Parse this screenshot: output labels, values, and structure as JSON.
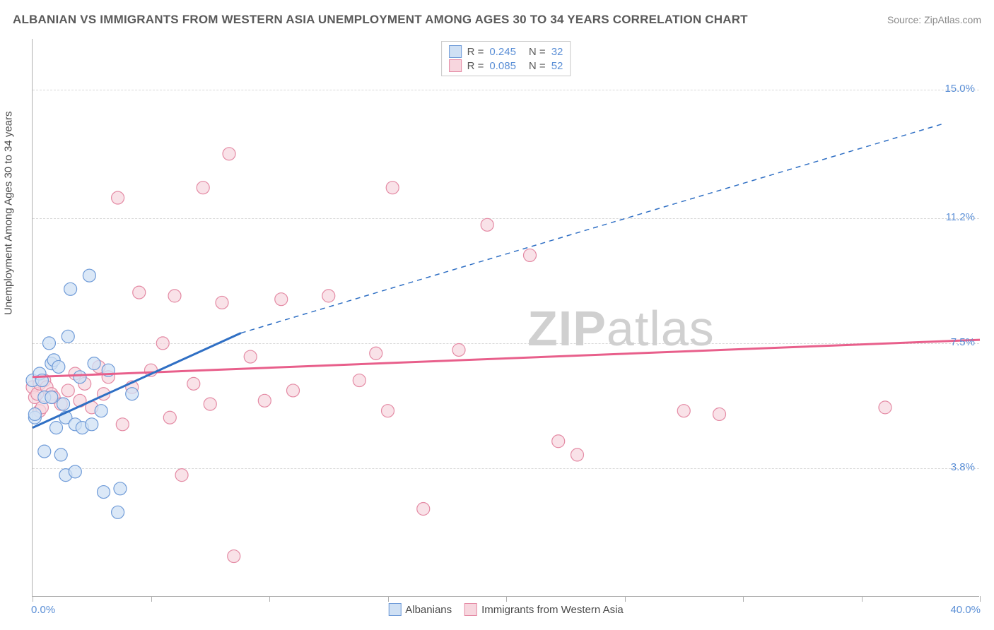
{
  "title": "ALBANIAN VS IMMIGRANTS FROM WESTERN ASIA UNEMPLOYMENT AMONG AGES 30 TO 34 YEARS CORRELATION CHART",
  "source": "Source: ZipAtlas.com",
  "ylabel": "Unemployment Among Ages 30 to 34 years",
  "watermark_a": "ZIP",
  "watermark_b": "atlas",
  "chart": {
    "type": "scatter",
    "background_color": "#ffffff",
    "grid_color": "#d8d8d8",
    "axis_color": "#b0b0b0",
    "xlim": [
      0,
      40
    ],
    "ylim": [
      0,
      16.5
    ],
    "x_ticks": [
      0,
      5,
      10,
      15,
      20,
      25,
      30,
      35,
      40
    ],
    "y_gridlines": [
      3.8,
      7.5,
      11.2,
      15.0
    ],
    "y_tick_labels": [
      "3.8%",
      "7.5%",
      "11.2%",
      "15.0%"
    ],
    "x_min_label": "0.0%",
    "x_max_label": "40.0%",
    "label_fontsize": 15,
    "label_color": "#5b8fd6",
    "marker_radius": 9,
    "marker_stroke_width": 1.2,
    "series": [
      {
        "name": "Albanians",
        "fill": "#cfe0f4",
        "stroke": "#6f9bd8",
        "fill_opacity": 0.75,
        "R": "0.245",
        "N": "32",
        "trend": {
          "color": "#2f6fc4",
          "width": 3,
          "dash_width": 1.5,
          "x1": 0,
          "y1": 5.0,
          "x_solid_end": 8.8,
          "y_solid_end": 7.8,
          "x2": 38.5,
          "y2": 14.0
        },
        "points": [
          [
            0.0,
            6.4
          ],
          [
            0.1,
            5.3
          ],
          [
            0.1,
            5.4
          ],
          [
            0.3,
            6.6
          ],
          [
            0.4,
            6.4
          ],
          [
            0.5,
            5.9
          ],
          [
            0.5,
            4.3
          ],
          [
            0.7,
            7.5
          ],
          [
            0.8,
            6.9
          ],
          [
            0.8,
            5.9
          ],
          [
            0.9,
            7.0
          ],
          [
            1.0,
            5.0
          ],
          [
            1.1,
            6.8
          ],
          [
            1.2,
            4.2
          ],
          [
            1.3,
            5.7
          ],
          [
            1.4,
            5.3
          ],
          [
            1.4,
            3.6
          ],
          [
            1.5,
            7.7
          ],
          [
            1.6,
            9.1
          ],
          [
            1.8,
            5.1
          ],
          [
            1.8,
            3.7
          ],
          [
            2.0,
            6.5
          ],
          [
            2.1,
            5.0
          ],
          [
            2.4,
            9.5
          ],
          [
            2.5,
            5.1
          ],
          [
            2.6,
            6.9
          ],
          [
            2.9,
            5.5
          ],
          [
            3.0,
            3.1
          ],
          [
            3.2,
            6.7
          ],
          [
            3.6,
            2.5
          ],
          [
            3.7,
            3.2
          ],
          [
            4.2,
            6.0
          ]
        ]
      },
      {
        "name": "Immigrants from Western Asia",
        "fill": "#f7d6de",
        "stroke": "#e48aa4",
        "fill_opacity": 0.7,
        "R": "0.085",
        "N": "52",
        "trend": {
          "color": "#e85f8b",
          "width": 3,
          "x1": 0,
          "y1": 6.5,
          "x2": 40,
          "y2": 7.6
        },
        "points": [
          [
            0.0,
            6.2
          ],
          [
            0.1,
            5.9
          ],
          [
            0.2,
            6.0
          ],
          [
            0.3,
            5.5
          ],
          [
            0.3,
            6.3
          ],
          [
            0.4,
            5.6
          ],
          [
            0.5,
            6.4
          ],
          [
            0.6,
            6.2
          ],
          [
            0.8,
            6.0
          ],
          [
            0.9,
            5.9
          ],
          [
            1.2,
            5.7
          ],
          [
            1.5,
            6.1
          ],
          [
            1.8,
            6.6
          ],
          [
            2.0,
            5.8
          ],
          [
            2.2,
            6.3
          ],
          [
            2.5,
            5.6
          ],
          [
            2.8,
            6.8
          ],
          [
            3.0,
            6.0
          ],
          [
            3.2,
            6.5
          ],
          [
            3.6,
            11.8
          ],
          [
            3.8,
            5.1
          ],
          [
            4.2,
            6.2
          ],
          [
            4.5,
            9.0
          ],
          [
            5.0,
            6.7
          ],
          [
            5.5,
            7.5
          ],
          [
            5.8,
            5.3
          ],
          [
            6.0,
            8.9
          ],
          [
            6.3,
            3.6
          ],
          [
            6.8,
            6.3
          ],
          [
            7.2,
            12.1
          ],
          [
            7.5,
            5.7
          ],
          [
            8.0,
            8.7
          ],
          [
            8.3,
            13.1
          ],
          [
            8.5,
            1.2
          ],
          [
            9.2,
            7.1
          ],
          [
            9.8,
            5.8
          ],
          [
            10.5,
            8.8
          ],
          [
            11.0,
            6.1
          ],
          [
            12.5,
            8.9
          ],
          [
            13.8,
            6.4
          ],
          [
            14.5,
            7.2
          ],
          [
            15.0,
            5.5
          ],
          [
            15.2,
            12.1
          ],
          [
            16.5,
            2.6
          ],
          [
            18.0,
            7.3
          ],
          [
            19.2,
            11.0
          ],
          [
            21.0,
            10.1
          ],
          [
            22.2,
            4.6
          ],
          [
            23.0,
            4.2
          ],
          [
            27.5,
            5.5
          ],
          [
            29.0,
            5.4
          ],
          [
            36.0,
            5.6
          ]
        ]
      }
    ]
  },
  "legend_bottom": {
    "items": [
      "Albanians",
      "Immigrants from Western Asia"
    ]
  }
}
